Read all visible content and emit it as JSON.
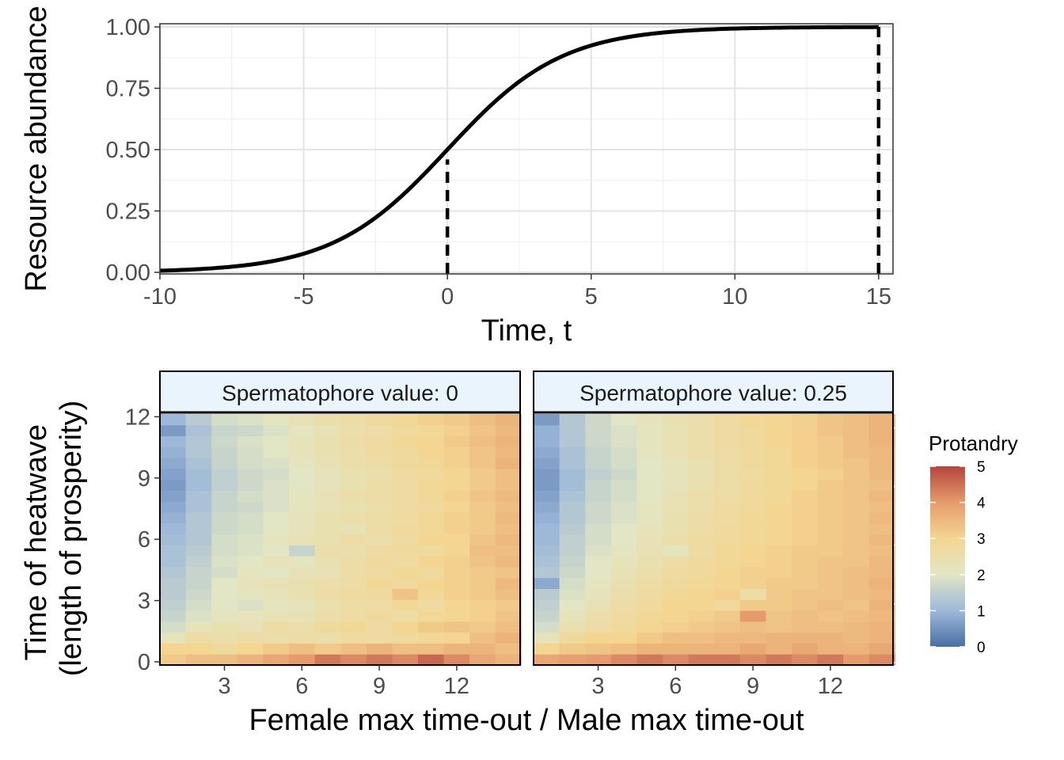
{
  "chart_data": [
    {
      "type": "line",
      "xlabel": "Time, t",
      "ylabel": "Resource abundance",
      "xlim": [
        -10,
        15.5
      ],
      "ylim": [
        0,
        1
      ],
      "x_ticks": [
        "-10",
        "-5",
        "0",
        "5",
        "10",
        "15"
      ],
      "y_ticks": [
        "0.00",
        "0.25",
        "0.50",
        "0.75",
        "1.00"
      ],
      "grid": true,
      "series": [
        {
          "style": "solid",
          "color": "#000000",
          "x": [
            -10,
            -9,
            -8,
            -7,
            -6,
            -5,
            -4,
            -3,
            -2,
            -1,
            0,
            1,
            2,
            3,
            4,
            5,
            6,
            7,
            8,
            9,
            10,
            11,
            12,
            13,
            14,
            15
          ],
          "y": [
            0.007,
            0.011,
            0.018,
            0.029,
            0.047,
            0.076,
            0.119,
            0.182,
            0.269,
            0.378,
            0.5,
            0.622,
            0.731,
            0.818,
            0.881,
            0.924,
            0.953,
            0.971,
            0.982,
            0.989,
            0.993,
            0.996,
            0.997,
            0.998,
            0.999,
            0.999
          ]
        }
      ],
      "vlines": [
        {
          "x": 0,
          "y_end": 0.46,
          "style": "dashed"
        },
        {
          "x": 15,
          "y_end": 1.0,
          "style": "dashed"
        }
      ]
    },
    {
      "type": "heatmap",
      "xlabel": "Female max time-out / Male max time-out",
      "ylabel": "Time of heatwave\n(length of prosperity)",
      "x_ticks": [
        "3",
        "6",
        "9",
        "12"
      ],
      "y_ticks": [
        "0",
        "3",
        "6",
        "9",
        "12"
      ],
      "legend": {
        "title": "Protandry",
        "min": 0,
        "max": 5,
        "ticks": [
          "0",
          "1",
          "2",
          "3",
          "4",
          "5"
        ],
        "placement": "right",
        "colors": [
          "#4A6FA5",
          "#9DB8D9",
          "#E2E6C4",
          "#F4D692",
          "#E69B6C",
          "#B5453E"
        ]
      },
      "panels": [
        {
          "strip": "Spermatophore value: 0",
          "cols": 14,
          "values": [
            [
              3.2,
              3.4,
              3.4,
              3.6,
              3.8,
              4.0,
              4.4,
              4.2,
              4.4,
              4.2,
              4.6,
              4.2,
              3.8,
              3.6
            ],
            [
              3.0,
              3.0,
              2.8,
              3.0,
              3.2,
              3.4,
              3.2,
              3.4,
              3.6,
              3.4,
              3.4,
              3.6,
              3.6,
              3.4
            ],
            [
              2.2,
              2.6,
              2.5,
              2.6,
              2.5,
              2.6,
              2.5,
              2.7,
              2.7,
              2.8,
              2.9,
              3.0,
              3.4,
              3.6
            ],
            [
              1.8,
              2.2,
              2.4,
              2.3,
              2.6,
              2.5,
              2.8,
              2.9,
              2.7,
              3.0,
              3.2,
              3.3,
              3.2,
              3.4
            ],
            [
              1.6,
              1.9,
              2.1,
              2.2,
              2.3,
              2.3,
              2.5,
              2.6,
              2.8,
              2.6,
              2.9,
              3.0,
              3.1,
              3.3
            ],
            [
              1.5,
              1.8,
              2.0,
              1.9,
              2.1,
              2.2,
              2.4,
              2.6,
              2.6,
              2.9,
              2.7,
              3.0,
              3.1,
              3.2
            ],
            [
              1.4,
              1.7,
              2.0,
              2.1,
              2.2,
              2.4,
              2.6,
              2.7,
              2.8,
              3.3,
              2.9,
              3.1,
              3.2,
              3.4
            ],
            [
              1.4,
              1.6,
              2.0,
              2.2,
              2.3,
              2.4,
              2.5,
              2.6,
              2.9,
              2.8,
              3.0,
              3.1,
              3.2,
              3.5
            ],
            [
              1.3,
              1.6,
              1.8,
              2.1,
              2.0,
              2.3,
              2.3,
              2.6,
              2.7,
              2.9,
              2.8,
              3.1,
              3.2,
              3.3
            ],
            [
              1.2,
              1.5,
              1.9,
              2.0,
              2.2,
              2.1,
              2.4,
              2.6,
              2.8,
              2.7,
              3.0,
              3.1,
              3.3,
              3.5
            ],
            [
              1.2,
              1.4,
              1.8,
              1.9,
              2.0,
              1.6,
              2.5,
              2.5,
              2.7,
              2.8,
              2.8,
              3.0,
              3.4,
              3.4
            ],
            [
              1.1,
              1.3,
              1.8,
              1.9,
              2.1,
              2.3,
              2.4,
              2.6,
              2.5,
              2.7,
              3.0,
              3.0,
              3.3,
              3.5
            ],
            [
              1.0,
              1.3,
              1.7,
              1.8,
              2.0,
              2.2,
              2.4,
              2.3,
              2.6,
              2.8,
              2.9,
              3.1,
              3.2,
              3.4
            ],
            [
              0.9,
              1.3,
              1.7,
              1.8,
              2.0,
              2.2,
              2.4,
              2.5,
              2.6,
              2.7,
              2.9,
              3.1,
              3.2,
              3.5
            ],
            [
              0.8,
              1.2,
              1.6,
              1.7,
              1.9,
              2.1,
              2.3,
              2.4,
              2.5,
              2.7,
              2.8,
              3.0,
              3.2,
              3.4
            ],
            [
              0.7,
              1.2,
              1.6,
              1.8,
              1.9,
              2.1,
              2.3,
              2.5,
              2.6,
              2.7,
              2.9,
              3.1,
              3.3,
              3.5
            ],
            [
              0.6,
              1.1,
              1.5,
              1.7,
              1.9,
              2.0,
              2.2,
              2.4,
              2.6,
              2.7,
              2.9,
              3.0,
              3.2,
              3.4
            ],
            [
              0.7,
              1.1,
              1.5,
              1.7,
              1.8,
              2.0,
              2.2,
              2.4,
              2.5,
              2.7,
              2.8,
              3.0,
              3.2,
              3.4
            ],
            [
              0.8,
              1.2,
              1.6,
              1.8,
              1.9,
              2.1,
              2.3,
              2.5,
              2.6,
              2.8,
              2.9,
              3.1,
              3.3,
              3.6
            ],
            [
              0.9,
              1.3,
              1.6,
              1.8,
              2.0,
              2.2,
              2.4,
              2.5,
              2.7,
              2.8,
              3.0,
              3.1,
              3.3,
              3.5
            ],
            [
              1.0,
              1.3,
              1.7,
              1.9,
              2.0,
              2.2,
              2.4,
              2.6,
              2.7,
              2.9,
              3.0,
              3.2,
              3.4,
              3.6
            ],
            [
              0.6,
              1.2,
              1.6,
              1.7,
              1.9,
              2.1,
              2.3,
              2.5,
              2.6,
              2.8,
              2.9,
              3.1,
              3.3,
              3.5
            ],
            [
              1.0,
              1.4,
              1.8,
              1.9,
              2.1,
              2.3,
              2.5,
              2.6,
              2.8,
              2.9,
              3.1,
              3.2,
              3.4,
              3.6
            ]
          ]
        },
        {
          "strip": "Spermatophore value: 0.25",
          "cols": 14,
          "na_last_column": true,
          "values": [
            [
              3.8,
              3.9,
              4.0,
              4.2,
              4.4,
              4.2,
              4.4,
              4.4,
              4.2,
              4.4,
              4.2,
              4.4,
              4.0,
              4.2
            ],
            [
              3.0,
              3.2,
              3.3,
              3.4,
              3.6,
              3.6,
              3.6,
              3.6,
              3.8,
              3.6,
              3.8,
              3.6,
              3.6,
              3.8
            ],
            [
              2.2,
              2.8,
              3.0,
              3.0,
              3.2,
              3.4,
              3.4,
              3.5,
              3.5,
              3.6,
              3.6,
              3.6,
              3.5,
              3.6
            ],
            [
              1.8,
              2.4,
              2.6,
              2.8,
              3.0,
              3.1,
              3.2,
              3.3,
              3.4,
              3.3,
              3.4,
              3.4,
              3.5,
              3.6
            ],
            [
              1.6,
              2.2,
              2.5,
              2.7,
              2.9,
              3.0,
              3.1,
              3.2,
              4.0,
              3.3,
              3.4,
              3.3,
              3.4,
              3.5
            ],
            [
              1.5,
              2.0,
              2.3,
              2.6,
              2.8,
              3.0,
              3.0,
              2.8,
              3.2,
              3.2,
              3.3,
              3.4,
              3.3,
              3.6
            ],
            [
              1.4,
              1.9,
              2.2,
              2.5,
              2.7,
              2.9,
              3.0,
              3.1,
              2.6,
              3.2,
              3.3,
              3.3,
              3.4,
              3.5
            ],
            [
              0.8,
              1.8,
              2.1,
              2.4,
              2.6,
              2.8,
              2.9,
              3.0,
              3.1,
              3.2,
              3.2,
              3.3,
              3.4,
              3.6
            ],
            [
              1.3,
              1.7,
              2.0,
              2.3,
              2.5,
              2.7,
              2.8,
              3.0,
              3.1,
              3.1,
              3.2,
              3.3,
              3.4,
              3.5
            ],
            [
              1.2,
              1.6,
              2.0,
              2.2,
              2.4,
              2.6,
              2.8,
              2.9,
              3.0,
              3.1,
              3.2,
              3.3,
              3.3,
              3.5
            ],
            [
              1.1,
              1.5,
              1.9,
              2.1,
              2.3,
              2.1,
              2.7,
              2.9,
              3.0,
              3.1,
              3.2,
              3.2,
              3.3,
              3.4
            ],
            [
              1.0,
              1.5,
              1.8,
              2.0,
              2.3,
              2.5,
              2.7,
              2.8,
              2.9,
              3.0,
              3.1,
              3.2,
              3.3,
              3.5
            ],
            [
              1.0,
              1.4,
              1.8,
              2.0,
              2.2,
              2.4,
              2.6,
              2.8,
              2.9,
              3.0,
              3.1,
              3.2,
              3.3,
              3.4
            ],
            [
              0.9,
              1.3,
              1.7,
              1.9,
              2.1,
              2.4,
              2.6,
              2.7,
              2.9,
              3.0,
              3.1,
              3.2,
              3.3,
              3.5
            ],
            [
              0.8,
              1.3,
              1.7,
              1.9,
              2.1,
              2.3,
              2.5,
              2.7,
              2.8,
              3.0,
              3.1,
              3.2,
              3.3,
              3.4
            ],
            [
              0.7,
              1.2,
              1.6,
              1.8,
              2.0,
              2.3,
              2.5,
              2.6,
              2.8,
              2.9,
              3.1,
              3.2,
              3.3,
              3.5
            ],
            [
              0.6,
              1.1,
              1.6,
              1.8,
              2.0,
              2.2,
              2.4,
              2.6,
              2.8,
              2.9,
              3.0,
              3.2,
              3.3,
              3.4
            ],
            [
              0.6,
              1.1,
              1.5,
              1.7,
              2.0,
              2.2,
              2.4,
              2.6,
              2.7,
              2.9,
              3.0,
              3.1,
              3.3,
              3.5
            ],
            [
              0.7,
              1.2,
              1.6,
              1.8,
              2.0,
              2.2,
              2.4,
              2.6,
              2.8,
              2.9,
              3.1,
              3.2,
              3.3,
              3.5
            ],
            [
              0.8,
              1.2,
              1.6,
              1.8,
              2.1,
              2.3,
              2.5,
              2.6,
              2.8,
              2.9,
              3.1,
              3.2,
              3.4,
              3.5
            ],
            [
              0.9,
              1.3,
              1.7,
              1.9,
              2.1,
              2.3,
              2.5,
              2.7,
              2.8,
              3.0,
              3.1,
              3.2,
              3.4,
              3.6
            ],
            [
              0.9,
              1.3,
              1.7,
              1.9,
              2.1,
              2.3,
              2.5,
              2.7,
              2.8,
              3.0,
              3.1,
              3.3,
              3.4,
              3.6
            ],
            [
              0.6,
              1.3,
              1.7,
              2.0,
              2.2,
              2.4,
              2.5,
              2.7,
              2.9,
              3.0,
              3.1,
              3.3,
              3.4,
              3.6
            ]
          ]
        }
      ]
    }
  ]
}
